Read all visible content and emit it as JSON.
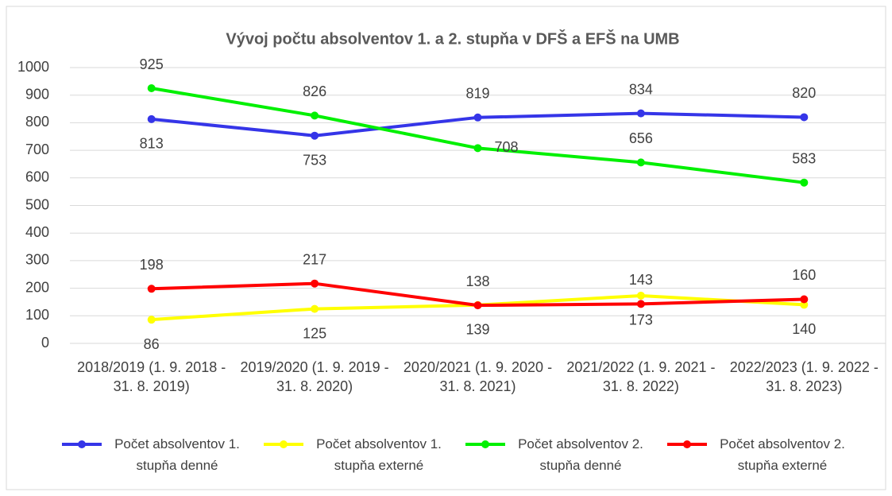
{
  "chart_data": {
    "type": "line",
    "title": "Vývoj počtu absolventov 1. a 2. stupňa v DFŠ a EFŠ na UMB",
    "categories": [
      "2018/2019 (1. 9. 2018 - 31. 8. 2019)",
      "2019/2020 (1. 9. 2019 - 31. 8. 2020)",
      "2020/2021 (1. 9. 2020 - 31. 8. 2021)",
      "2021/2022 (1. 9. 2021 - 31. 8. 2022)",
      "2022/2023 (1. 9. 2022 - 31. 8. 2023)"
    ],
    "series": [
      {
        "name": "Počet absolventov 1. stupňa denné",
        "color": "#3535e8",
        "values": [
          813,
          753,
          819,
          834,
          820
        ]
      },
      {
        "name": "Počet absolventov 1. stupňa externé",
        "color": "#ffff00",
        "values": [
          86,
          125,
          139,
          173,
          140
        ]
      },
      {
        "name": "Počet absolventov 2. stupňa denné",
        "color": "#00f000",
        "values": [
          925,
          826,
          708,
          656,
          583
        ]
      },
      {
        "name": "Počet absolventov 2. stupňa externé",
        "color": "#ff0000",
        "values": [
          198,
          217,
          138,
          143,
          160
        ]
      }
    ],
    "ylim": [
      0,
      1000
    ],
    "yticks": [
      0,
      100,
      200,
      300,
      400,
      500,
      600,
      700,
      800,
      900,
      1000
    ],
    "grid": true,
    "legend": "bottom"
  }
}
